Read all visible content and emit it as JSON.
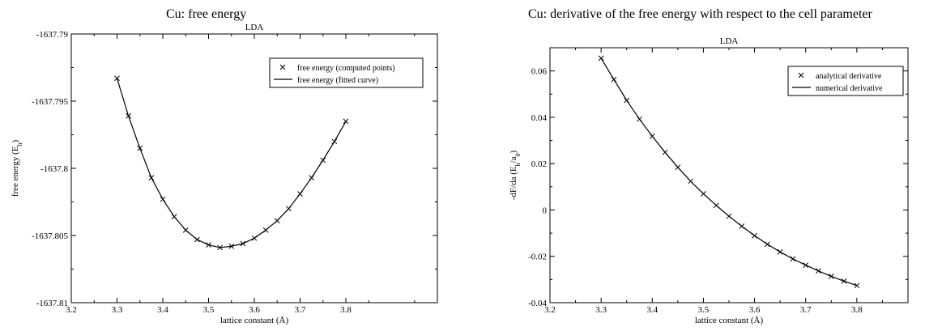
{
  "chart_data": [
    {
      "type": "line",
      "title": "Cu: free energy",
      "subtitle": "LDA",
      "xlabel": "lattice constant (Å)",
      "ylabel_main": "free energy (E",
      "ylabel_sub": "h",
      "ylabel_tail": ")",
      "xlim": [
        3.2,
        4.0
      ],
      "ylim": [
        -1637.81,
        -1637.79
      ],
      "xticks": [
        3.2,
        3.3,
        3.4,
        3.5,
        3.6,
        3.7,
        3.8
      ],
      "xtick_labels": [
        "3.2",
        "3.3",
        "3.4",
        "3.5",
        "3.6",
        "3.7",
        "3.8"
      ],
      "yticks": [
        -1637.81,
        -1637.805,
        -1637.8,
        -1637.795,
        -1637.79
      ],
      "ytick_labels": [
        "-1637.81",
        "-1637.805",
        "-1637.8",
        "-1637.795",
        "-1637.79"
      ],
      "grid": false,
      "legend_position": "top-right",
      "series": [
        {
          "name": "free energy (computed points)",
          "marker": "x",
          "x": [
            3.3,
            3.325,
            3.35,
            3.375,
            3.4,
            3.425,
            3.45,
            3.475,
            3.5,
            3.525,
            3.55,
            3.575,
            3.6,
            3.625,
            3.65,
            3.675,
            3.7,
            3.725,
            3.75,
            3.775,
            3.8
          ],
          "y": [
            -1637.7933,
            -1637.7961,
            -1637.7985,
            -1637.8007,
            -1637.8023,
            -1637.8036,
            -1637.8046,
            -1637.8053,
            -1637.8057,
            -1637.8059,
            -1637.8058,
            -1637.8056,
            -1637.8052,
            -1637.8046,
            -1637.8039,
            -1637.803,
            -1637.8019,
            -1637.8007,
            -1637.7994,
            -1637.798,
            -1637.7965
          ]
        },
        {
          "name": "free energy (fitted curve)",
          "marker": "line",
          "x": [
            3.3,
            3.325,
            3.35,
            3.375,
            3.4,
            3.425,
            3.45,
            3.475,
            3.5,
            3.525,
            3.55,
            3.575,
            3.6,
            3.625,
            3.65,
            3.675,
            3.7,
            3.725,
            3.75,
            3.775,
            3.8
          ],
          "y": [
            -1637.7933,
            -1637.7961,
            -1637.7985,
            -1637.8007,
            -1637.8023,
            -1637.8036,
            -1637.8046,
            -1637.8053,
            -1637.8057,
            -1637.8059,
            -1637.8058,
            -1637.8056,
            -1637.8052,
            -1637.8046,
            -1637.8039,
            -1637.803,
            -1637.8019,
            -1637.8007,
            -1637.7994,
            -1637.798,
            -1637.7965
          ]
        }
      ]
    },
    {
      "type": "line",
      "title": "Cu: derivative of the free energy with respect to the cell parameter",
      "subtitle": "LDA",
      "xlabel": "lattice constant (Å)",
      "ylabel_main": "-dF/da (E",
      "ylabel_sub": "h",
      "ylabel_mid": "/a",
      "ylabel_sub2": "0",
      "ylabel_tail": ")",
      "xlim": [
        3.2,
        3.9
      ],
      "ylim": [
        -0.04,
        0.07
      ],
      "xticks": [
        3.2,
        3.3,
        3.4,
        3.5,
        3.6,
        3.7,
        3.8
      ],
      "xtick_labels": [
        "3.2",
        "3.3",
        "3.4",
        "3.5",
        "3.6",
        "3.7",
        "3.8"
      ],
      "yticks": [
        -0.04,
        -0.02,
        0,
        0.02,
        0.04,
        0.06
      ],
      "ytick_labels": [
        "-0.04",
        "-0.02",
        "0",
        "0.02",
        "0.04",
        "0.06"
      ],
      "grid": false,
      "legend_position": "top-right",
      "series": [
        {
          "name": "analytical derivative",
          "marker": "x",
          "x": [
            3.3,
            3.325,
            3.35,
            3.375,
            3.4,
            3.425,
            3.45,
            3.475,
            3.5,
            3.525,
            3.55,
            3.575,
            3.6,
            3.625,
            3.65,
            3.675,
            3.7,
            3.725,
            3.75,
            3.775,
            3.8
          ],
          "y": [
            0.0655,
            0.0563,
            0.0473,
            0.0392,
            0.0318,
            0.0249,
            0.0184,
            0.0124,
            0.007,
            0.002,
            -0.0027,
            -0.007,
            -0.0111,
            -0.0148,
            -0.0181,
            -0.0211,
            -0.0238,
            -0.0263,
            -0.0286,
            -0.0307,
            -0.0326
          ]
        },
        {
          "name": "numerical derivative",
          "marker": "line",
          "x": [
            3.3,
            3.325,
            3.35,
            3.375,
            3.4,
            3.425,
            3.45,
            3.475,
            3.5,
            3.525,
            3.55,
            3.575,
            3.6,
            3.625,
            3.65,
            3.675,
            3.7,
            3.725,
            3.75,
            3.775,
            3.8
          ],
          "y": [
            0.0655,
            0.0563,
            0.0473,
            0.0392,
            0.0318,
            0.0249,
            0.0184,
            0.0124,
            0.007,
            0.002,
            -0.0027,
            -0.007,
            -0.0111,
            -0.0148,
            -0.0181,
            -0.0211,
            -0.0238,
            -0.0263,
            -0.0286,
            -0.0307,
            -0.0326
          ]
        }
      ]
    }
  ]
}
